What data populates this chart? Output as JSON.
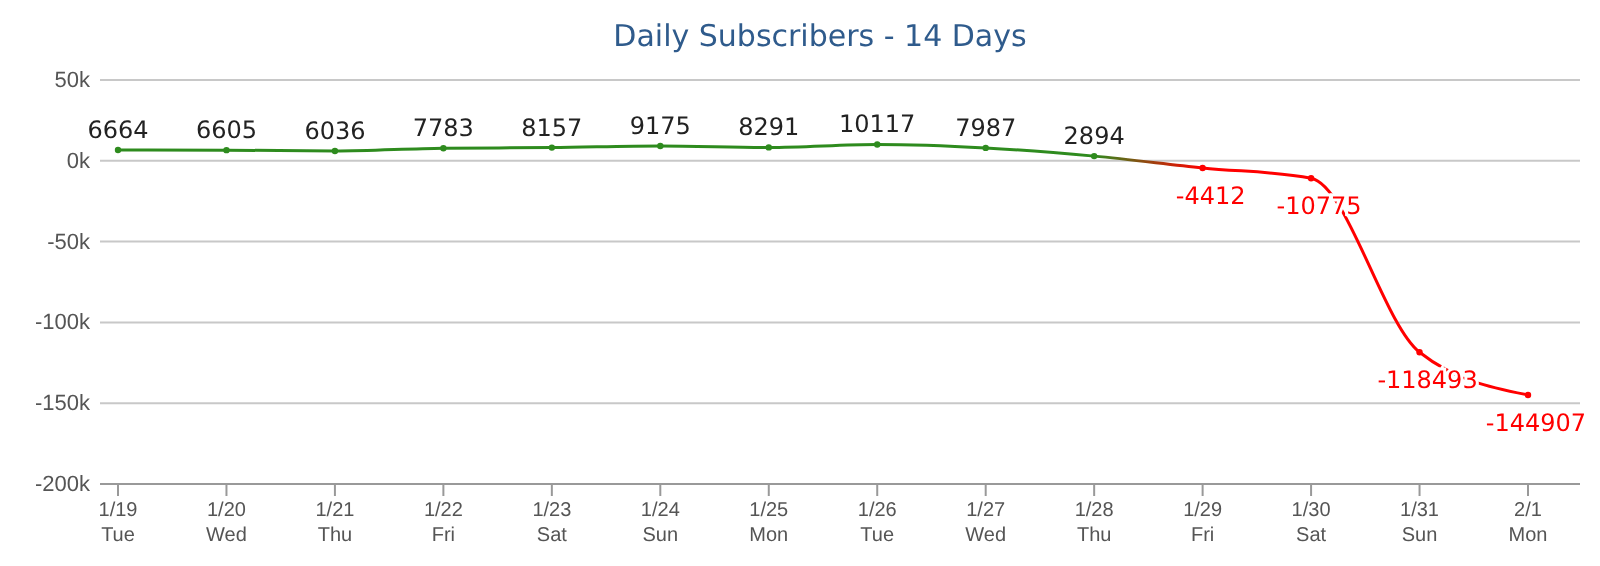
{
  "chart_data": {
    "type": "line",
    "title": "Daily Subscribers - 14 Days",
    "categories": [
      "1/19\nTue",
      "1/20\nWed",
      "1/21\nThu",
      "1/22\nFri",
      "1/23\nSat",
      "1/24\nSun",
      "1/25\nMon",
      "1/26\nTue",
      "1/27\nWed",
      "1/28\nThu",
      "1/29\nFri",
      "1/30\nSat",
      "1/31\nSun",
      "2/1\nMon"
    ],
    "series": [
      {
        "colors": [
          "#2e8b1e",
          "#2e8b1e",
          "#2e8b1e",
          "#2e8b1e",
          "#2e8b1e",
          "#2e8b1e",
          "#2e8b1e",
          "#2e8b1e",
          "#2e8b1e",
          "#2e8b1e",
          "#ff0000",
          "#ff0000",
          "#ff0000",
          "#ff0000"
        ],
        "values": [
          6664,
          6605,
          6036,
          7783,
          8157,
          9175,
          8291,
          10117,
          7987,
          2894,
          -4412,
          -10775,
          -118493,
          -144907
        ]
      }
    ],
    "ylim": [
      -200000,
      50000
    ],
    "yticks": [
      {
        "value": -200000,
        "label": "-200k"
      },
      {
        "value": -150000,
        "label": "-150k"
      },
      {
        "value": -100000,
        "label": "-100k"
      },
      {
        "value": -50000,
        "label": "-50k"
      },
      {
        "value": 0,
        "label": "0k"
      },
      {
        "value": 50000,
        "label": "50k"
      }
    ],
    "grid": "y",
    "data_labels": true,
    "marker": "circle"
  }
}
